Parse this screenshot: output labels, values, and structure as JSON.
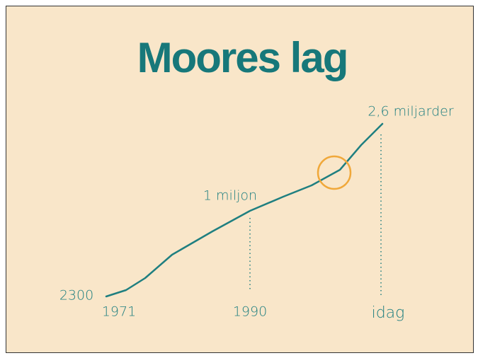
{
  "title": "Moores lag",
  "annotations": {
    "start_value": "2300",
    "middle_value": "1 miljon",
    "end_value": "2,6 miljarder"
  },
  "timeline": [
    "1971",
    "1990",
    "idag"
  ]
}
